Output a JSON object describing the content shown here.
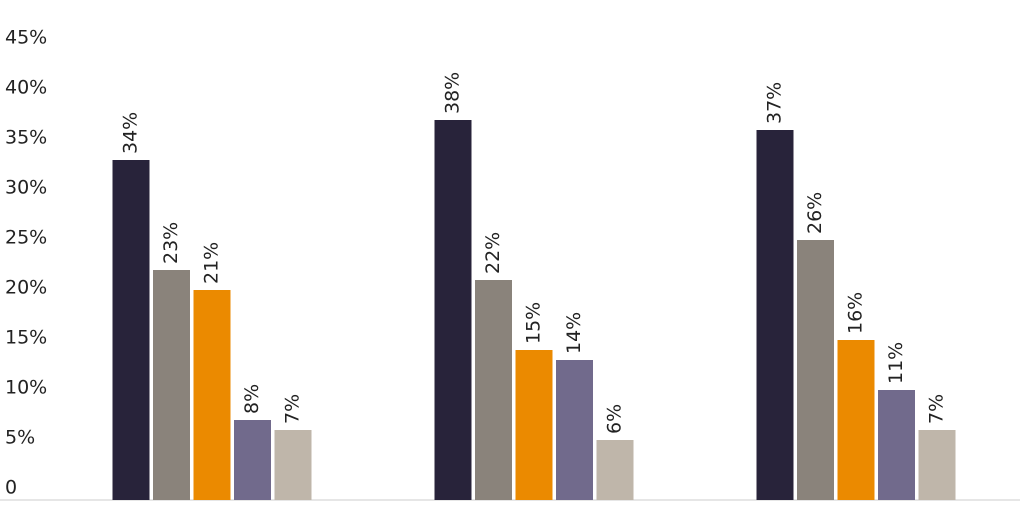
{
  "chart_data": {
    "type": "bar",
    "categories": [
      null,
      null,
      null
    ],
    "series": [
      {
        "color": "#28233a",
        "values": [
          34,
          38,
          37
        ],
        "value_labels": [
          "34%",
          "38%",
          "37%"
        ]
      },
      {
        "color": "#8a837b",
        "values": [
          23,
          22,
          26
        ],
        "value_labels": [
          "23%",
          "22%",
          "26%"
        ]
      },
      {
        "color": "#eb8a00",
        "values": [
          21,
          15,
          16
        ],
        "value_labels": [
          "21%",
          "15%",
          "16%"
        ]
      },
      {
        "color": "#716a8c",
        "values": [
          8,
          14,
          11
        ],
        "value_labels": [
          "8%",
          "14%",
          "11%"
        ]
      },
      {
        "color": "#bfb6aa",
        "values": [
          7,
          6,
          7
        ],
        "value_labels": [
          "7%",
          "6%",
          "7%"
        ]
      }
    ],
    "ylim": [
      0,
      45
    ],
    "yticks": [
      0,
      {
        "value": 5,
        "label": "5%"
      },
      {
        "value": 10,
        "label": "10%"
      },
      {
        "value": 15,
        "label": "15%"
      },
      {
        "value": 20,
        "label": "20%"
      },
      {
        "value": 25,
        "label": "25%"
      },
      {
        "value": 30,
        "label": "30%"
      },
      {
        "value": 35,
        "label": "35%"
      },
      {
        "value": 40,
        "label": "40%"
      },
      {
        "value": 45,
        "label": "45%"
      }
    ],
    "grid": false
  }
}
